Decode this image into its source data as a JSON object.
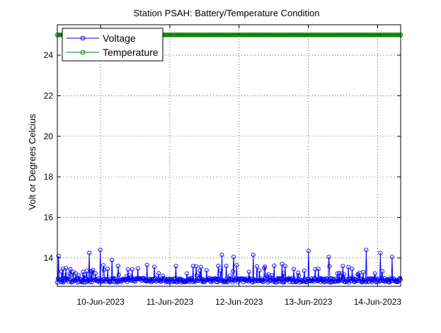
{
  "chart_data": {
    "type": "line",
    "title": "Station PSAH: Battery/Temperature Condition",
    "ylabel": "Volt or Degrees Celcius",
    "xlabel": "",
    "ylim": [
      12.6,
      25.5
    ],
    "xlim": [
      "2023-06-09 09:00",
      "2023-06-14 08:00"
    ],
    "grid": true,
    "legend_position": "top-left",
    "y_ticks": [
      14,
      16,
      18,
      20,
      22,
      24
    ],
    "y_tick_labels": [
      "14",
      "16",
      "18",
      "20",
      "22",
      "24"
    ],
    "x_ticks": [
      "2023-06-10",
      "2023-06-11",
      "2023-06-12",
      "2023-06-13",
      "2023-06-14"
    ],
    "x_tick_labels": [
      "10-Jun-2023",
      "11-Jun-2023",
      "12-Jun-2023",
      "13-Jun-2023",
      "14-Jun-2023"
    ],
    "series": [
      {
        "name": "Voltage",
        "color": "#0000ff",
        "marker": "circle",
        "baseline": 12.9,
        "start": "2023-06-09 09:00",
        "end": "2023-06-14 08:00",
        "spikes": [
          {
            "t": "2023-06-09 09:30",
            "v": 14.1
          },
          {
            "t": "2023-06-09 12:00",
            "v": 13.5
          },
          {
            "t": "2023-06-09 20:00",
            "v": 14.25
          },
          {
            "t": "2023-06-10 00:00",
            "v": 14.4
          },
          {
            "t": "2023-06-10 04:00",
            "v": 13.9
          },
          {
            "t": "2023-06-10 16:00",
            "v": 13.65
          },
          {
            "t": "2023-06-11 02:00",
            "v": 13.6
          },
          {
            "t": "2023-06-11 08:00",
            "v": 13.6
          },
          {
            "t": "2023-06-11 18:00",
            "v": 14.15
          },
          {
            "t": "2023-06-11 22:00",
            "v": 14.05
          },
          {
            "t": "2023-06-12 05:00",
            "v": 14.15
          },
          {
            "t": "2023-06-12 15:00",
            "v": 13.7
          },
          {
            "t": "2023-06-13 00:00",
            "v": 14.35
          },
          {
            "t": "2023-06-13 07:00",
            "v": 14.05
          },
          {
            "t": "2023-06-13 14:00",
            "v": 13.55
          },
          {
            "t": "2023-06-13 20:00",
            "v": 14.4
          },
          {
            "t": "2023-06-14 01:00",
            "v": 14.25
          },
          {
            "t": "2023-06-14 05:00",
            "v": 14.05
          }
        ]
      },
      {
        "name": "Temperature",
        "color": "#007f00",
        "marker": "circle",
        "value": 25.0,
        "start": "2023-06-09 09:00",
        "end": "2023-06-14 08:00"
      }
    ]
  }
}
